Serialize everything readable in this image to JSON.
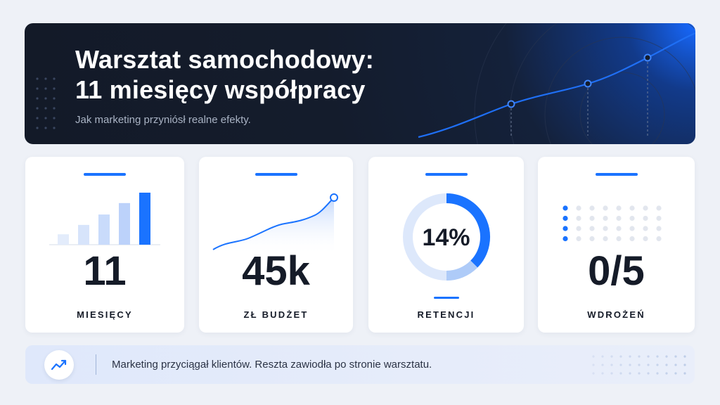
{
  "hero": {
    "title_line1": "Warsztat samochodowy:",
    "title_line2": "11 miesięcy współpracy",
    "subtitle": "Jak marketing przyniósł realne efekty.",
    "trend_points": 3
  },
  "colors": {
    "accent": "#1a73ff",
    "dark": "#141c2c",
    "text": "#151b28",
    "light_bar": "#c9dbfb",
    "pale_bar": "#dfe9fb"
  },
  "cards": [
    {
      "icon": "bar-chart-icon",
      "value": "11",
      "label": "MIESIĘCY",
      "bar_levels": [
        0.2,
        0.38,
        0.58,
        0.8,
        1.0
      ]
    },
    {
      "icon": "line-chart-icon",
      "value": "45k",
      "label": "ZŁ BUDŻET"
    },
    {
      "icon": "donut-chart-icon",
      "value": "14%",
      "label": "RETENCJI",
      "percent": 14
    },
    {
      "icon": "dot-grid-icon",
      "value": "0/5",
      "label": "WDROŻEŃ",
      "highlighted_rows": 4
    }
  ],
  "footer": {
    "icon": "trend-up-icon",
    "text": "Marketing przyciągał klientów. Reszta zawiodła po stronie warsztatu."
  }
}
